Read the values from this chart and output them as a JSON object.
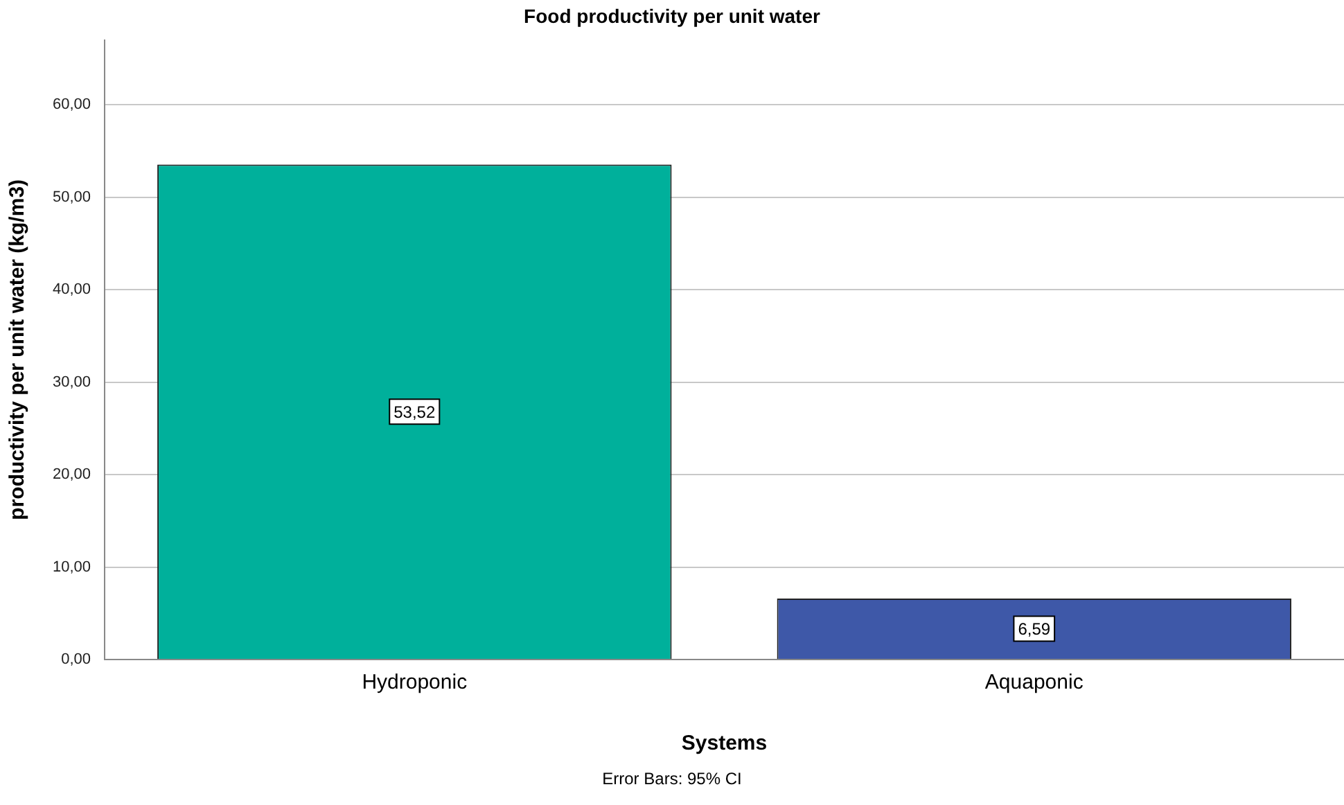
{
  "chart_data": {
    "type": "bar",
    "title": "Food productivity per unit water",
    "xlabel": "Systems",
    "ylabel": "productivity per unit water (kg/m3)",
    "categories": [
      "Hydroponic",
      "Aquaponic"
    ],
    "values": [
      53.52,
      6.59
    ],
    "colors": [
      "#00b09b",
      "#3e58a8"
    ],
    "value_labels": [
      "53,52",
      "6,59"
    ],
    "ylim": [
      0,
      67
    ],
    "yticks": [
      {
        "value": 0,
        "label": "0,00"
      },
      {
        "value": 10,
        "label": "10,00"
      },
      {
        "value": 20,
        "label": "20,00"
      },
      {
        "value": 30,
        "label": "30,00"
      },
      {
        "value": 40,
        "label": "40,00"
      },
      {
        "value": 50,
        "label": "50,00"
      },
      {
        "value": 60,
        "label": "60,00"
      }
    ],
    "grid": "y",
    "legend": false,
    "annotations": [
      "Error Bars: 95% CI"
    ]
  }
}
